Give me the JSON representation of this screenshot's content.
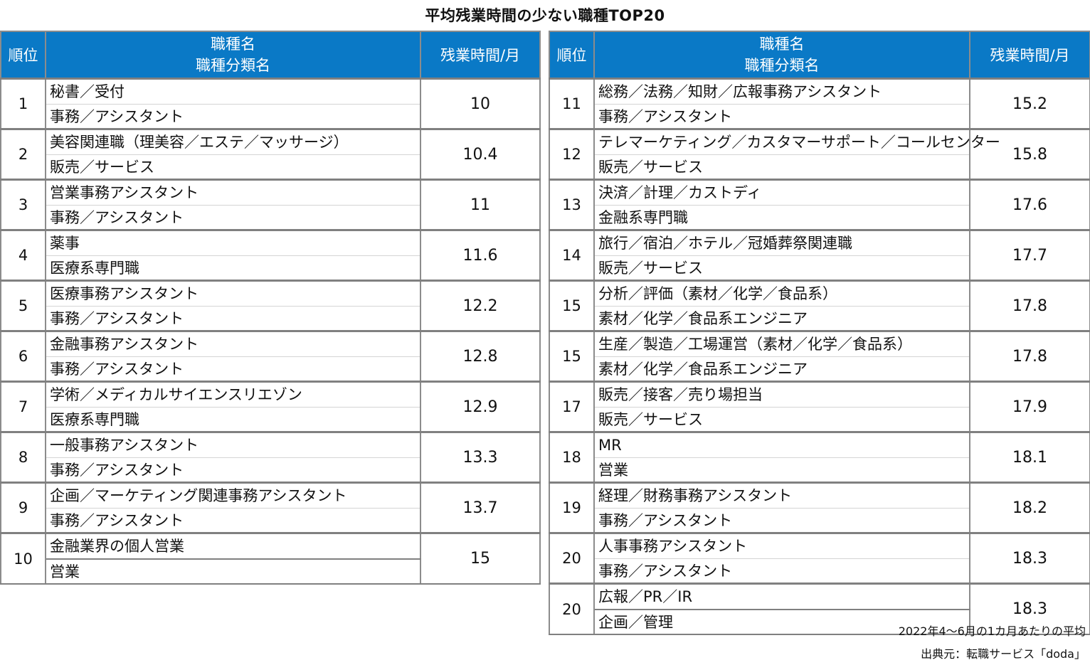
{
  "title": "平均残業時間の少ない職種TOP20",
  "header": {
    "rank": "順位",
    "job_name": "職種名",
    "job_category": "職種分類名",
    "overtime": "残業時間/月"
  },
  "rows_left": [
    {
      "rank": "1",
      "name": "秘書／受付",
      "category": "事務／アシスタント",
      "hours": "10"
    },
    {
      "rank": "2",
      "name": "美容関連職（理美容／エステ／マッサージ）",
      "category": "販売／サービス",
      "hours": "10.4"
    },
    {
      "rank": "3",
      "name": "営業事務アシスタント",
      "category": "事務／アシスタント",
      "hours": "11"
    },
    {
      "rank": "4",
      "name": "薬事",
      "category": "医療系専門職",
      "hours": "11.6"
    },
    {
      "rank": "5",
      "name": "医療事務アシスタント",
      "category": "事務／アシスタント",
      "hours": "12.2"
    },
    {
      "rank": "6",
      "name": "金融事務アシスタント",
      "category": "事務／アシスタント",
      "hours": "12.8"
    },
    {
      "rank": "7",
      "name": "学術／メディカルサイエンスリエゾン",
      "category": "医療系専門職",
      "hours": "12.9"
    },
    {
      "rank": "8",
      "name": "一般事務アシスタント",
      "category": "事務／アシスタント",
      "hours": "13.3"
    },
    {
      "rank": "9",
      "name": "企画／マーケティング関連事務アシスタント",
      "category": "事務／アシスタント",
      "hours": "13.7"
    },
    {
      "rank": "10",
      "name": "金融業界の個人営業",
      "category": "営業",
      "hours": "15"
    }
  ],
  "rows_right": [
    {
      "rank": "11",
      "name": "総務／法務／知財／広報事務アシスタント",
      "category": "事務／アシスタント",
      "hours": "15.2"
    },
    {
      "rank": "12",
      "name": "テレマーケティング／カスタマーサポート／コールセンター",
      "category": "販売／サービス",
      "hours": "15.8"
    },
    {
      "rank": "13",
      "name": "決済／計理／カストディ",
      "category": "金融系専門職",
      "hours": "17.6"
    },
    {
      "rank": "14",
      "name": "旅行／宿泊／ホテル／冠婚葬祭関連職",
      "category": "販売／サービス",
      "hours": "17.7"
    },
    {
      "rank": "15",
      "name": "分析／評価（素材／化学／食品系）",
      "category": "素材／化学／食品系エンジニア",
      "hours": "17.8"
    },
    {
      "rank": "15",
      "name": "生産／製造／工場運営（素材／化学／食品系）",
      "category": "素材／化学／食品系エンジニア",
      "hours": "17.8"
    },
    {
      "rank": "17",
      "name": "販売／接客／売り場担当",
      "category": "販売／サービス",
      "hours": "17.9"
    },
    {
      "rank": "18",
      "name": "MR",
      "category": "営業",
      "hours": "18.1"
    },
    {
      "rank": "19",
      "name": "経理／財務事務アシスタント",
      "category": "事務／アシスタント",
      "hours": "18.2"
    },
    {
      "rank": "20",
      "name": "人事事務アシスタント",
      "category": "事務／アシスタント",
      "hours": "18.3"
    },
    {
      "rank": "20",
      "name": "広報／PR／IR",
      "category": "企画／管理",
      "hours": "18.3"
    }
  ],
  "notes": {
    "period": "2022年4～6月の1カ月あたりの平均",
    "source": "出典元：転職サービス「doda」"
  },
  "colors": {
    "header_bg": "#0a79c6",
    "header_text": "#ffffff",
    "border": "#808080"
  }
}
